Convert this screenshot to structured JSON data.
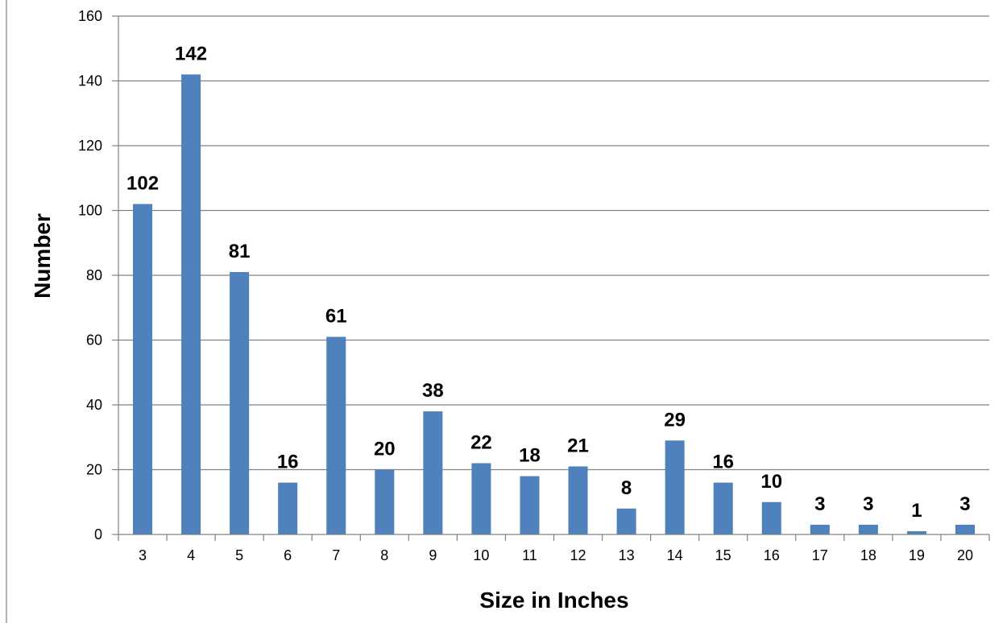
{
  "chart_data": {
    "type": "bar",
    "title": "",
    "xlabel": "Size in Inches",
    "ylabel": "Number",
    "categories": [
      "3",
      "4",
      "5",
      "6",
      "7",
      "8",
      "9",
      "10",
      "11",
      "12",
      "13",
      "14",
      "15",
      "16",
      "17",
      "18",
      "19",
      "20"
    ],
    "values": [
      102,
      142,
      81,
      16,
      61,
      20,
      38,
      22,
      18,
      21,
      8,
      29,
      16,
      10,
      3,
      3,
      1,
      3
    ],
    "data_labels": [
      "102",
      "142",
      "81",
      "16",
      "61",
      "20",
      "38",
      "22",
      "18",
      "21",
      "8",
      "29",
      "16",
      "10",
      "3",
      "3",
      "1",
      "3"
    ],
    "ylim": [
      0,
      160
    ],
    "yticks": [
      "0",
      "20",
      "40",
      "60",
      "80",
      "100",
      "120",
      "140",
      "160"
    ],
    "ytick_values": [
      0,
      20,
      40,
      60,
      80,
      100,
      120,
      140,
      160
    ],
    "grid": true,
    "legend": "none",
    "bar_color": "#4F81BD",
    "grid_color": "#808080"
  }
}
